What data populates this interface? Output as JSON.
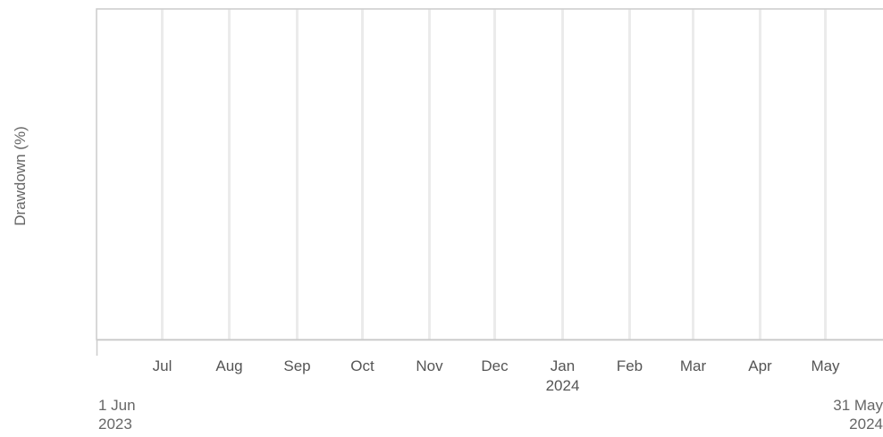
{
  "chart_data": {
    "type": "area",
    "title": "",
    "xlabel": "",
    "ylabel": "Drawdown (%)",
    "x_range": [
      "2023-06-01",
      "2024-05-31"
    ],
    "x_range_labels": {
      "start": [
        "1 Jun",
        "2023"
      ],
      "end": [
        "31 May",
        "2024"
      ]
    },
    "x_ticks": [
      {
        "date": "2023-07-01",
        "label": "Jul",
        "sub": ""
      },
      {
        "date": "2023-08-01",
        "label": "Aug",
        "sub": ""
      },
      {
        "date": "2023-09-01",
        "label": "Sep",
        "sub": ""
      },
      {
        "date": "2023-10-01",
        "label": "Oct",
        "sub": ""
      },
      {
        "date": "2023-11-01",
        "label": "Nov",
        "sub": ""
      },
      {
        "date": "2023-12-01",
        "label": "Dec",
        "sub": ""
      },
      {
        "date": "2024-01-01",
        "label": "Jan",
        "sub": "2024"
      },
      {
        "date": "2024-02-01",
        "label": "Feb",
        "sub": ""
      },
      {
        "date": "2024-03-01",
        "label": "Mar",
        "sub": ""
      },
      {
        "date": "2024-04-01",
        "label": "Apr",
        "sub": ""
      },
      {
        "date": "2024-05-01",
        "label": "May",
        "sub": ""
      }
    ],
    "series": [],
    "grid": "vertical",
    "legend": "none",
    "colors": {
      "grid": "#ebebeb",
      "axis": "#cccccc",
      "tick_text": "#555555"
    }
  }
}
